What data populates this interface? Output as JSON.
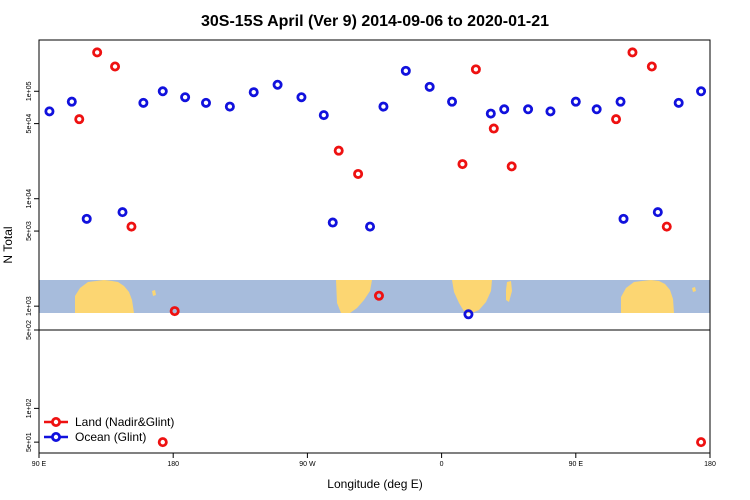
{
  "chart_data": {
    "type": "scatter",
    "title": "30S-15S April (Ver 9)   2014-09-06 to 2020-01-21",
    "xlabel": "Longitude (deg E)",
    "ylabel": "N Total",
    "x_ticks": [
      {
        "value": 90,
        "label": "90 E"
      },
      {
        "value": 180,
        "label": "180"
      },
      {
        "value": 270,
        "label": "90 W"
      },
      {
        "value": 360,
        "label": "0"
      },
      {
        "value": 450,
        "label": "90 E"
      },
      {
        "value": 540,
        "label": "180"
      }
    ],
    "xlim": [
      90,
      540
    ],
    "upper_panel": {
      "y_scale": "log",
      "y_ticks": [
        {
          "value": 100000,
          "label": "1e+05"
        },
        {
          "value": 50000,
          "label": "5e+04"
        },
        {
          "value": 10000,
          "label": "1e+04"
        },
        {
          "value": 5000,
          "label": "5e+03"
        },
        {
          "value": 1000,
          "label": "1e+03"
        }
      ],
      "ylim": [
        600,
        300000
      ]
    },
    "lower_panel": {
      "y_scale": "log",
      "y_ticks": [
        {
          "value": 500,
          "label": "5e+02"
        },
        {
          "value": 100,
          "label": "1e+02"
        },
        {
          "value": 50,
          "label": "5e+01"
        }
      ],
      "ylim": [
        40,
        500
      ]
    },
    "colors": {
      "land": "#ee1111",
      "ocean": "#1111dd",
      "map_sea": "#a7bcdc",
      "map_land": "#fcd672"
    },
    "series": [
      {
        "name": "Land (Nadir&Glint)",
        "color": "#ee1111",
        "points": [
          {
            "x": 117,
            "y": 55000
          },
          {
            "x": 129,
            "y": 230000
          },
          {
            "x": 141,
            "y": 170000
          },
          {
            "x": 152,
            "y": 5500
          },
          {
            "x": 181,
            "y": 900
          },
          {
            "x": 291,
            "y": 28000
          },
          {
            "x": 304,
            "y": 17000
          },
          {
            "x": 318,
            "y": 1250
          },
          {
            "x": 374,
            "y": 21000
          },
          {
            "x": 383,
            "y": 160000
          },
          {
            "x": 395,
            "y": 45000
          },
          {
            "x": 407,
            "y": 20000
          },
          {
            "x": 477,
            "y": 55000
          },
          {
            "x": 488,
            "y": 230000
          },
          {
            "x": 501,
            "y": 170000
          },
          {
            "x": 511,
            "y": 5500
          },
          {
            "x": 173,
            "y": 50
          },
          {
            "x": 534,
            "y": 50
          }
        ]
      },
      {
        "name": "Ocean (Glint)",
        "color": "#1111dd",
        "points": [
          {
            "x": 97,
            "y": 65000
          },
          {
            "x": 112,
            "y": 80000
          },
          {
            "x": 122,
            "y": 6500
          },
          {
            "x": 146,
            "y": 7500
          },
          {
            "x": 160,
            "y": 78000
          },
          {
            "x": 173,
            "y": 100000
          },
          {
            "x": 188,
            "y": 88000
          },
          {
            "x": 202,
            "y": 78000
          },
          {
            "x": 218,
            "y": 72000
          },
          {
            "x": 234,
            "y": 98000
          },
          {
            "x": 250,
            "y": 115000
          },
          {
            "x": 266,
            "y": 88000
          },
          {
            "x": 281,
            "y": 60000
          },
          {
            "x": 287,
            "y": 6000
          },
          {
            "x": 312,
            "y": 5500
          },
          {
            "x": 321,
            "y": 72000
          },
          {
            "x": 336,
            "y": 155000
          },
          {
            "x": 352,
            "y": 110000
          },
          {
            "x": 367,
            "y": 80000
          },
          {
            "x": 378,
            "y": 840
          },
          {
            "x": 393,
            "y": 62000
          },
          {
            "x": 402,
            "y": 68000
          },
          {
            "x": 418,
            "y": 68000
          },
          {
            "x": 433,
            "y": 65000
          },
          {
            "x": 450,
            "y": 80000
          },
          {
            "x": 464,
            "y": 68000
          },
          {
            "x": 480,
            "y": 80000
          },
          {
            "x": 482,
            "y": 6500
          },
          {
            "x": 505,
            "y": 7500
          },
          {
            "x": 519,
            "y": 78000
          },
          {
            "x": 534,
            "y": 100000
          }
        ]
      }
    ],
    "legend": {
      "position": "bottom-left",
      "entries": [
        {
          "label": "Land (Nadir&Glint)",
          "color": "#ee1111"
        },
        {
          "label": "Ocean (Glint)",
          "color": "#1111dd"
        }
      ]
    }
  }
}
